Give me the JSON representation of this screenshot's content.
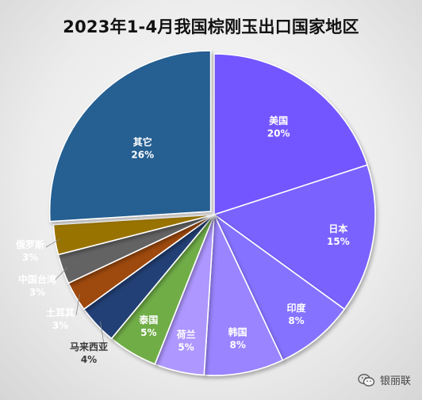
{
  "chart_data": {
    "type": "pie",
    "title": "2023年1-4月我国棕刚玉出口国家地区",
    "slices": [
      {
        "label": "美国",
        "value": 20,
        "value_label": "20%",
        "color": "#7357ff"
      },
      {
        "label": "日本",
        "value": 15,
        "value_label": "15%",
        "color": "#7a62ff"
      },
      {
        "label": "印度",
        "value": 8,
        "value_label": "8%",
        "color": "#8572ff"
      },
      {
        "label": "韩国",
        "value": 8,
        "value_label": "8%",
        "color": "#9a84ff"
      },
      {
        "label": "荷兰",
        "value": 5,
        "value_label": "5%",
        "color": "#ae97ff"
      },
      {
        "label": "泰国",
        "value": 5,
        "value_label": "5%",
        "color": "#70ad47"
      },
      {
        "label": "马来西亚",
        "value": 4,
        "value_label": "4%",
        "color": "#243f75"
      },
      {
        "label": "土耳其",
        "value": 3,
        "value_label": "3%",
        "color": "#9e480e"
      },
      {
        "label": "中国台湾",
        "value": 3,
        "value_label": "3%",
        "color": "#636363"
      },
      {
        "label": "俄罗斯",
        "value": 3,
        "value_label": "3%",
        "color": "#997300"
      },
      {
        "label": "其它",
        "value": 26,
        "value_label": "26%",
        "color": "#255e91"
      }
    ],
    "legend": "none",
    "start": "top",
    "direction": "clockwise",
    "exploded_slice": "其它"
  },
  "watermark": {
    "text": "银丽联",
    "icon": "wechat-icon"
  }
}
